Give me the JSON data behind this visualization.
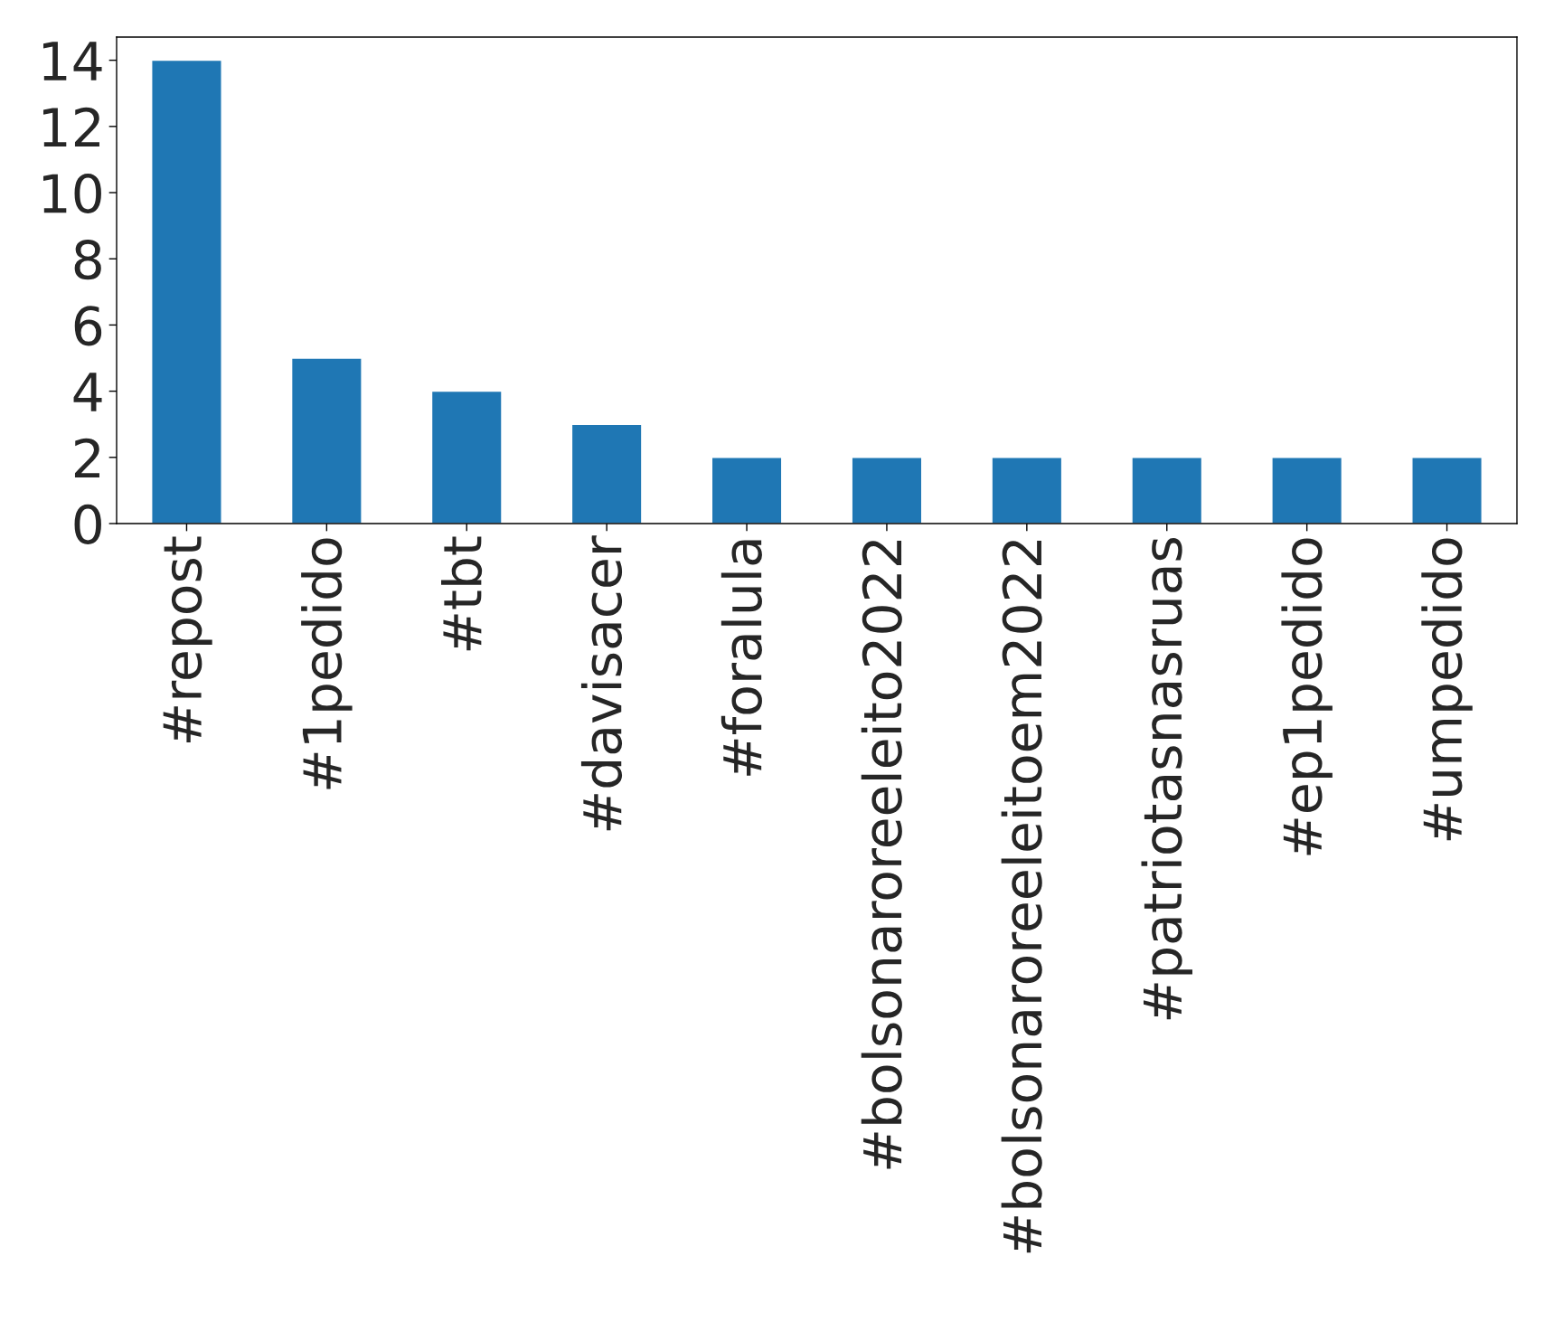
{
  "chart_data": {
    "type": "bar",
    "categories": [
      "#repost",
      "#1pedido",
      "#tbt",
      "#davisacer",
      "#foralula",
      "#bolsonaroreeleito2022",
      "#bolsonaroreeleitoem2022",
      "#patriotasnasruas",
      "#ep1pedido",
      "#umpedido"
    ],
    "values": [
      14,
      5,
      4,
      3,
      2,
      2,
      2,
      2,
      2,
      2
    ],
    "color": "#1f77b4",
    "ylim": [
      0,
      14.7
    ],
    "yticks": [
      0,
      2,
      4,
      6,
      8,
      10,
      12,
      14
    ],
    "grid": false,
    "legend": false
  }
}
